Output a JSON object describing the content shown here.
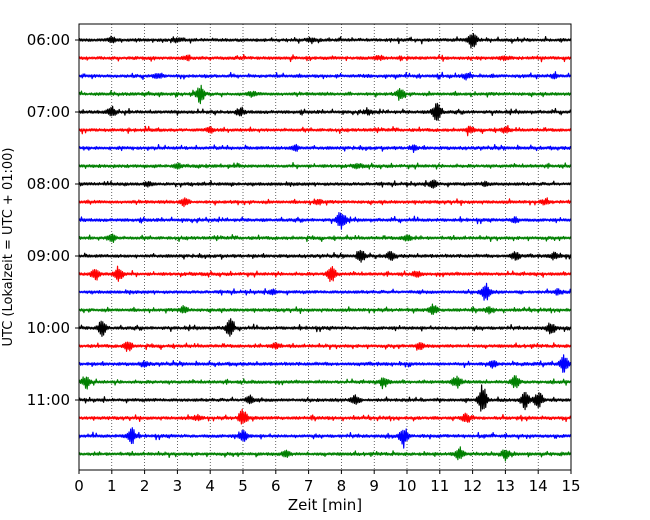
{
  "chart_data": {
    "type": "line",
    "title": "",
    "xlabel": "Zeit  [min]",
    "ylabel": "UTC (Lokalzeit = UTC + 01:00)",
    "xlim": [
      0,
      15
    ],
    "x_ticks": [
      "0",
      "1",
      "2",
      "3",
      "4",
      "5",
      "6",
      "7",
      "8",
      "9",
      "10",
      "11",
      "12",
      "13",
      "14",
      "15"
    ],
    "y_ticks": [
      "06:00",
      "07:00",
      "08:00",
      "09:00",
      "10:00",
      "11:00"
    ],
    "grid": "vertical dotted at each minute",
    "trace_interval_min": 15,
    "trace_colors": [
      "#000000",
      "#ff0000",
      "#0000ff",
      "#008000"
    ],
    "series": [
      {
        "start": "06:00",
        "color": "#000000",
        "events": [
          [
            12.0,
            2.2
          ],
          [
            1.0,
            0.6
          ],
          [
            3.0,
            0.6
          ],
          [
            7.1,
            0.6
          ]
        ]
      },
      {
        "start": "06:15",
        "color": "#ff0000",
        "events": [
          [
            3.3,
            0.5
          ],
          [
            9.1,
            0.5
          ],
          [
            13.0,
            0.5
          ]
        ]
      },
      {
        "start": "06:30",
        "color": "#0000ff",
        "events": [
          [
            2.4,
            0.5
          ],
          [
            11.8,
            0.6
          ],
          [
            14.5,
            0.5
          ]
        ]
      },
      {
        "start": "06:45",
        "color": "#008000",
        "events": [
          [
            3.7,
            2.2
          ],
          [
            9.8,
            1.2
          ],
          [
            5.3,
            0.5
          ]
        ]
      },
      {
        "start": "07:00",
        "color": "#000000",
        "events": [
          [
            10.9,
            2.6
          ],
          [
            1.0,
            1.0
          ],
          [
            4.9,
            0.8
          ],
          [
            8.8,
            0.6
          ]
        ]
      },
      {
        "start": "07:15",
        "color": "#ff0000",
        "events": [
          [
            4.0,
            0.6
          ],
          [
            11.9,
            0.7
          ],
          [
            13.0,
            0.6
          ]
        ]
      },
      {
        "start": "07:30",
        "color": "#0000ff",
        "events": [
          [
            6.6,
            0.7
          ],
          [
            10.2,
            0.5
          ]
        ]
      },
      {
        "start": "07:45",
        "color": "#008000",
        "events": [
          [
            3.0,
            0.6
          ],
          [
            8.5,
            0.5
          ]
        ]
      },
      {
        "start": "08:00",
        "color": "#000000",
        "events": [
          [
            10.8,
            1.2
          ],
          [
            2.1,
            0.5
          ],
          [
            12.4,
            0.5
          ]
        ]
      },
      {
        "start": "08:15",
        "color": "#ff0000",
        "events": [
          [
            3.2,
            1.0
          ],
          [
            7.3,
            0.6
          ],
          [
            14.2,
            0.5
          ]
        ]
      },
      {
        "start": "08:30",
        "color": "#0000ff",
        "events": [
          [
            8.0,
            2.6
          ],
          [
            13.3,
            0.6
          ]
        ]
      },
      {
        "start": "08:45",
        "color": "#008000",
        "events": [
          [
            1.0,
            1.0
          ],
          [
            10.0,
            0.8
          ]
        ]
      },
      {
        "start": "09:00",
        "color": "#000000",
        "events": [
          [
            8.6,
            1.4
          ],
          [
            9.5,
            1.0
          ],
          [
            13.3,
            0.9
          ],
          [
            14.5,
            0.8
          ]
        ]
      },
      {
        "start": "09:15",
        "color": "#ff0000",
        "events": [
          [
            0.5,
            1.5
          ],
          [
            1.2,
            2.1
          ],
          [
            7.7,
            2.1
          ],
          [
            10.3,
            0.6
          ]
        ]
      },
      {
        "start": "09:30",
        "color": "#0000ff",
        "events": [
          [
            12.4,
            2.2
          ],
          [
            5.9,
            0.7
          ],
          [
            14.6,
            0.6
          ]
        ]
      },
      {
        "start": "09:45",
        "color": "#008000",
        "events": [
          [
            10.8,
            1.2
          ],
          [
            3.2,
            0.8
          ],
          [
            12.5,
            0.6
          ]
        ]
      },
      {
        "start": "10:00",
        "color": "#000000",
        "events": [
          [
            0.7,
            1.8
          ],
          [
            4.6,
            2.2
          ],
          [
            14.4,
            1.3
          ]
        ]
      },
      {
        "start": "10:15",
        "color": "#ff0000",
        "events": [
          [
            1.5,
            1.2
          ],
          [
            6.0,
            0.7
          ],
          [
            10.4,
            0.7
          ]
        ]
      },
      {
        "start": "10:30",
        "color": "#0000ff",
        "events": [
          [
            14.8,
            2.2
          ],
          [
            12.6,
            0.8
          ],
          [
            2.0,
            0.6
          ]
        ]
      },
      {
        "start": "10:45",
        "color": "#008000",
        "events": [
          [
            0.2,
            1.4
          ],
          [
            9.3,
            1.2
          ],
          [
            11.5,
            1.4
          ],
          [
            13.3,
            1.6
          ]
        ]
      },
      {
        "start": "11:00",
        "color": "#000000",
        "events": [
          [
            12.3,
            3.6
          ],
          [
            13.6,
            2.4
          ],
          [
            14.0,
            2.0
          ],
          [
            8.4,
            1.2
          ],
          [
            5.2,
            0.9
          ]
        ]
      },
      {
        "start": "11:15",
        "color": "#ff0000",
        "events": [
          [
            5.0,
            2.2
          ],
          [
            11.8,
            0.9
          ],
          [
            3.6,
            0.6
          ]
        ]
      },
      {
        "start": "11:30",
        "color": "#0000ff",
        "events": [
          [
            1.6,
            2.0
          ],
          [
            5.0,
            1.6
          ],
          [
            9.9,
            2.2
          ]
        ]
      },
      {
        "start": "11:45",
        "color": "#008000",
        "events": [
          [
            11.6,
            1.5
          ],
          [
            13.0,
            1.0
          ],
          [
            6.3,
            0.7
          ]
        ]
      }
    ]
  }
}
